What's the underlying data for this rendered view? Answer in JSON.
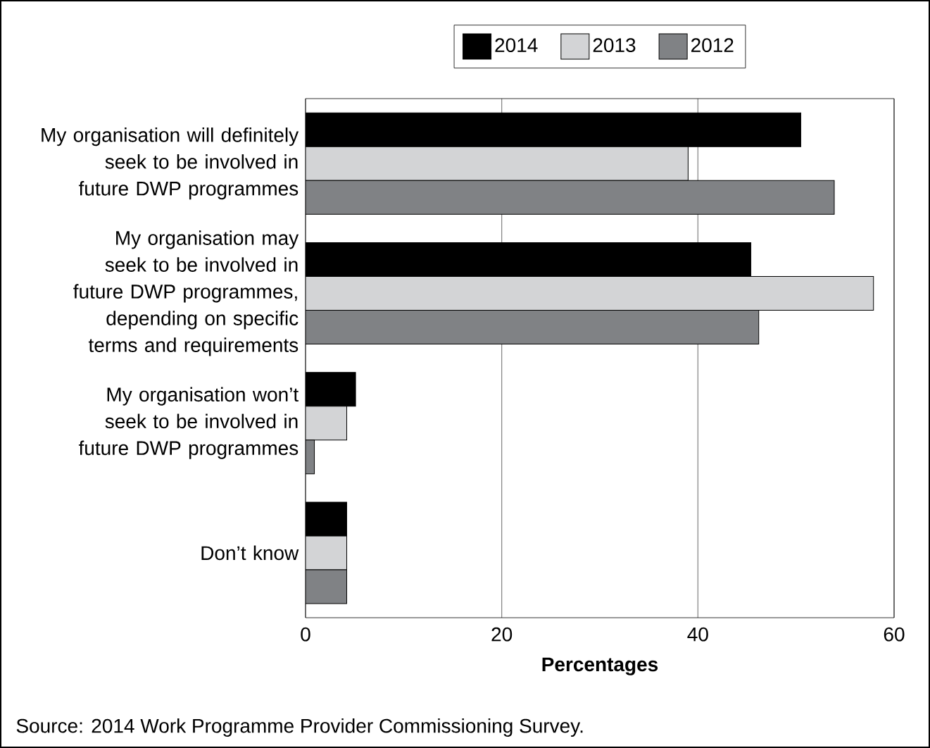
{
  "chart_data": {
    "type": "bar",
    "orientation": "horizontal",
    "categories": [
      "My organisation will definitely seek to be involved in future DWP programmes",
      "My organisation may seek to be involved in future DWP programmes, depending on specific terms and requirements",
      "My organisation won’t seek to be involved in future DWP programmes",
      "Don’t know"
    ],
    "series": [
      {
        "name": "2014",
        "color": "#000000",
        "values": [
          50.5,
          45.4,
          5.1,
          4.2
        ]
      },
      {
        "name": "2013",
        "color": "#d3d4d6",
        "values": [
          39.0,
          57.9,
          4.2,
          4.2
        ]
      },
      {
        "name": "2012",
        "color": "#808285",
        "values": [
          53.9,
          46.2,
          0.9,
          4.2
        ]
      }
    ],
    "xlabel": "Percentages",
    "xlim": [
      0,
      60
    ],
    "xticks": [
      0,
      20,
      40,
      60
    ],
    "grid": "x",
    "legend": "top",
    "annotations": [
      "Source: 2014 Work Programme Provider Commissioning Survey."
    ]
  }
}
